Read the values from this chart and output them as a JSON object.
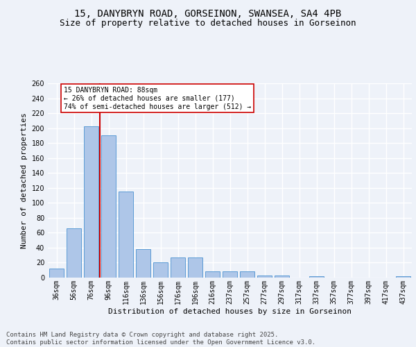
{
  "title_line1": "15, DANYBRYN ROAD, GORSEINON, SWANSEA, SA4 4PB",
  "title_line2": "Size of property relative to detached houses in Gorseinon",
  "xlabel": "Distribution of detached houses by size in Gorseinon",
  "ylabel": "Number of detached properties",
  "categories": [
    "36sqm",
    "56sqm",
    "76sqm",
    "96sqm",
    "116sqm",
    "136sqm",
    "156sqm",
    "176sqm",
    "196sqm",
    "216sqm",
    "237sqm",
    "257sqm",
    "277sqm",
    "297sqm",
    "317sqm",
    "337sqm",
    "357sqm",
    "377sqm",
    "397sqm",
    "417sqm",
    "437sqm"
  ],
  "values": [
    12,
    66,
    202,
    190,
    115,
    38,
    20,
    27,
    27,
    8,
    8,
    8,
    3,
    3,
    0,
    2,
    0,
    0,
    0,
    0,
    2
  ],
  "bar_color": "#aec6e8",
  "bar_edge_color": "#5b9bd5",
  "vline_x": 2.5,
  "vline_color": "#cc0000",
  "annotation_text": "15 DANYBRYN ROAD: 88sqm\n← 26% of detached houses are smaller (177)\n74% of semi-detached houses are larger (512) →",
  "annotation_box_color": "#ffffff",
  "annotation_box_edge": "#cc0000",
  "ylim": [
    0,
    260
  ],
  "yticks": [
    0,
    20,
    40,
    60,
    80,
    100,
    120,
    140,
    160,
    180,
    200,
    220,
    240,
    260
  ],
  "background_color": "#eef2f9",
  "grid_color": "#ffffff",
  "footer": "Contains HM Land Registry data © Crown copyright and database right 2025.\nContains public sector information licensed under the Open Government Licence v3.0.",
  "title_fontsize": 10,
  "subtitle_fontsize": 9,
  "axis_label_fontsize": 8,
  "tick_fontsize": 7,
  "footer_fontsize": 6.5,
  "fig_bg": "#eef2f9"
}
